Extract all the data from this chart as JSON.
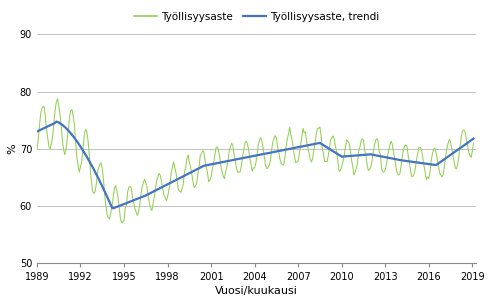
{
  "title": "",
  "ylabel": "%",
  "xlabel": "Vuosi/kuukausi",
  "legend_labels": [
    "Työllisyysaste",
    "Työllisyysaste, trendi"
  ],
  "ylim": [
    50,
    90
  ],
  "yticks": [
    50,
    60,
    70,
    80,
    90
  ],
  "xticks_years": [
    1989,
    1992,
    1995,
    1998,
    2001,
    2004,
    2007,
    2010,
    2013,
    2016,
    2019
  ],
  "line_color": "#4472C4",
  "raw_color": "#92D050",
  "background_color": "#ffffff",
  "grid_color": "#aaaaaa"
}
